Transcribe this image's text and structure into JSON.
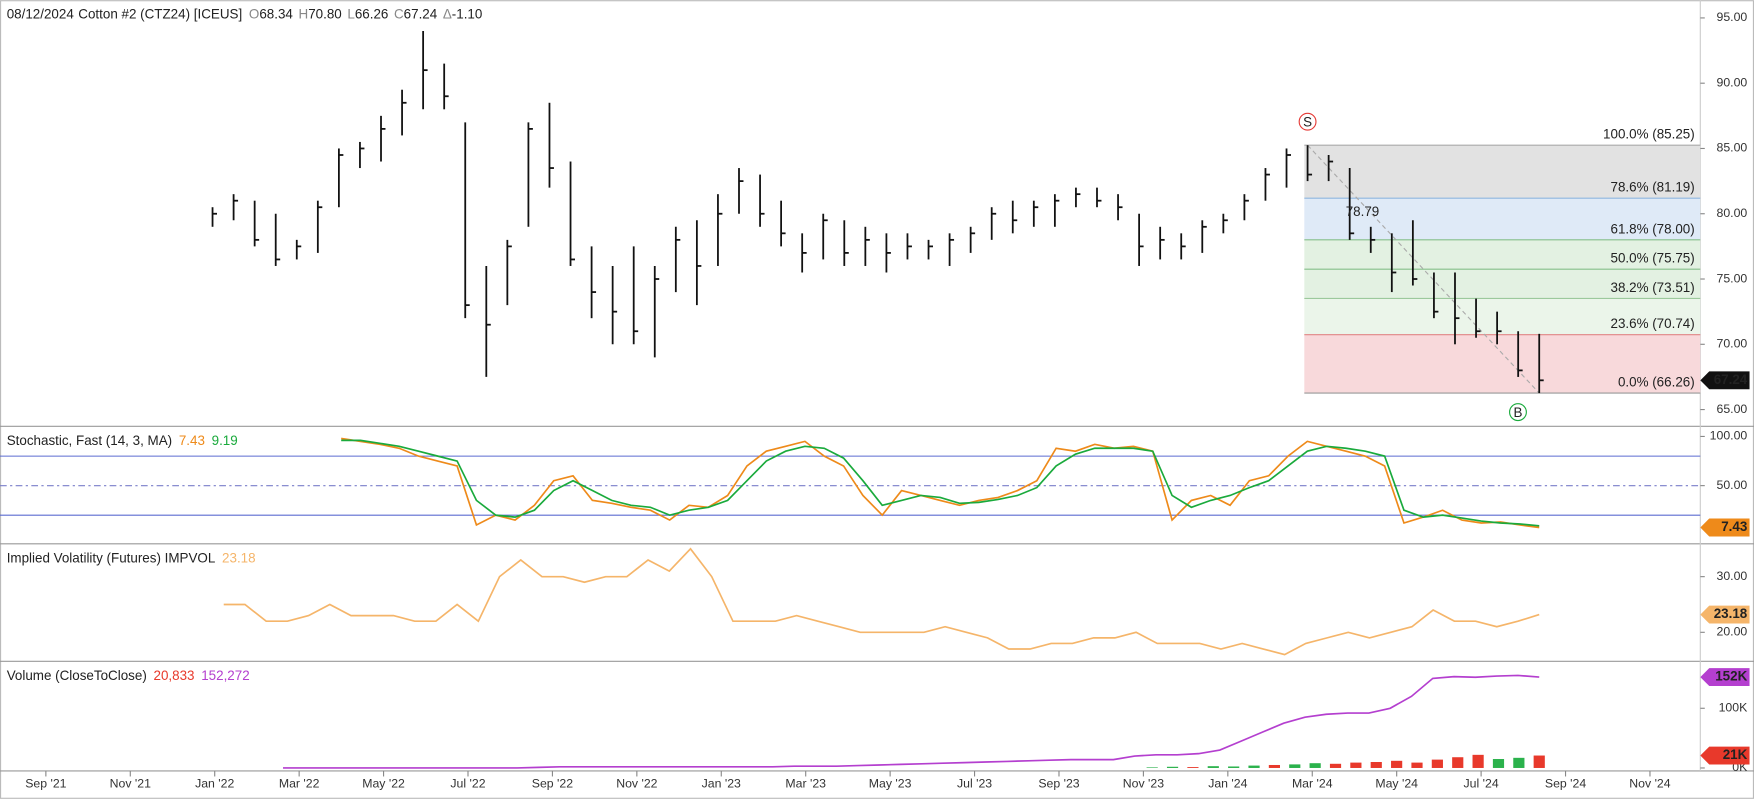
{
  "header": {
    "date": "08/12/2024",
    "symbol": "Cotton #2 (CTZ24) [ICEUS]",
    "ohlc_fields": [
      {
        "key": "O",
        "value": "68.34"
      },
      {
        "key": "H",
        "value": "70.80"
      },
      {
        "key": "L",
        "value": "66.26"
      },
      {
        "key": "C",
        "value": "67.24"
      },
      {
        "key": "Δ",
        "value": "-1.10"
      }
    ]
  },
  "x_axis": {
    "labels": [
      "Sep '21",
      "Nov '21",
      "Jan '22",
      "Mar '22",
      "May '22",
      "Jul '22",
      "Sep '22",
      "Nov '22",
      "Jan '23",
      "Mar '23",
      "May '23",
      "Jul '23",
      "Sep '23",
      "Nov '23",
      "Jan '24",
      "Mar '24",
      "May '24",
      "Jul '24",
      "Sep '24",
      "Nov '24"
    ]
  },
  "chart_data": [
    {
      "type": "ohlc",
      "color": "#111111",
      "high": [
        80.5,
        81.5,
        81,
        80,
        78,
        81,
        85,
        85.5,
        87.5,
        89.5,
        94,
        91.5,
        87,
        76,
        78,
        87,
        88.5,
        84,
        77.5,
        76,
        77.5,
        76,
        79,
        79.5,
        81.5,
        83.5,
        83,
        81,
        78.5,
        80,
        79.5,
        79,
        78.5,
        78.5,
        78,
        78.5,
        79,
        80.5,
        81,
        81,
        81.5,
        82,
        82,
        81.5,
        80,
        79,
        78.5,
        79.5,
        80,
        81.5,
        83.5,
        85,
        85.25,
        84.5,
        83.5,
        79,
        78.5,
        79.5,
        75.5,
        75.5,
        73.5,
        72.5,
        71,
        70.8
      ],
      "low": [
        79,
        79.5,
        77.5,
        76,
        76.5,
        77,
        80.5,
        83.5,
        84,
        86,
        88,
        88,
        72,
        67.5,
        73,
        79,
        82,
        76,
        72,
        70,
        70,
        69,
        74,
        73,
        76,
        80,
        79,
        77.5,
        75.5,
        76.5,
        76,
        76,
        75.5,
        76.5,
        76.5,
        76,
        77,
        78,
        78.5,
        79,
        79,
        80.5,
        80.5,
        79.5,
        76,
        76.5,
        76.5,
        77,
        78.5,
        79.5,
        81,
        82,
        82.5,
        82.5,
        78,
        77,
        74,
        74.5,
        72,
        70,
        70.5,
        70,
        67.5,
        66.26
      ],
      "close": [
        80,
        81,
        78,
        76.5,
        77.5,
        80.5,
        84.5,
        85,
        86.5,
        88.5,
        91,
        89,
        73,
        71.5,
        77.5,
        86.5,
        83.5,
        76.5,
        74,
        72.5,
        71,
        75,
        78,
        76,
        80,
        82.5,
        80,
        78.5,
        77,
        79.5,
        77,
        78,
        77,
        77.5,
        77.5,
        78,
        78.5,
        80,
        79.5,
        80.5,
        81,
        81.5,
        81,
        80.5,
        77.5,
        78,
        77.5,
        79,
        79.5,
        81,
        83,
        84.5,
        83,
        84,
        78.5,
        78,
        75.5,
        75,
        72.5,
        72,
        71,
        71,
        68,
        67.24
      ],
      "ylim": [
        63.8,
        96.19
      ],
      "yticks": [
        {
          "value": 95,
          "label": "95.00"
        },
        {
          "value": 90,
          "label": "90.00"
        },
        {
          "value": 85,
          "label": "85.00"
        },
        {
          "value": 80,
          "label": "80.00"
        },
        {
          "value": 75,
          "label": "75.00"
        },
        {
          "value": 70,
          "label": "70.00"
        },
        {
          "value": 65,
          "label": "65.00"
        }
      ],
      "fib_levels": [
        {
          "value": 85.25,
          "label": "100.0% (85.25)",
          "color": "#aaaaaa"
        },
        {
          "value": 81.19,
          "label": "78.6% (81.19)",
          "color": "#8fb6df"
        },
        {
          "value": 78.0,
          "label": "61.8% (78.00)",
          "color": "#86bf8a"
        },
        {
          "value": 75.75,
          "label": "50.0% (75.75)",
          "color": "#86bf8a"
        },
        {
          "value": 73.51,
          "label": "38.2% (73.51)",
          "color": "#9cc99c"
        },
        {
          "value": 70.74,
          "label": "23.6% (70.74)",
          "color": "#e08585"
        },
        {
          "value": 66.26,
          "label": "0.0% (66.26)",
          "color": "#999999"
        }
      ],
      "fib_band_colors": [
        "#e2e2e2",
        "#dfeaf7",
        "#e3f1e2",
        "#e3f1e2",
        "#ebf5ea",
        "#f8d9db"
      ],
      "annotation": "78.79",
      "signals": [
        "S",
        "B"
      ]
    },
    {
      "type": "line",
      "title": "Stochastic, Fast  (14, 3, MA)",
      "ylim": [
        -8,
        108
      ],
      "yticks": [
        {
          "value": 100,
          "label": "100.00"
        },
        {
          "value": 50,
          "label": "50.00"
        }
      ],
      "levels": [
        80,
        20
      ],
      "series": [
        {
          "color": "#ee8a1a",
          "values": [
            98,
            95,
            92,
            88,
            80,
            75,
            70,
            10,
            20,
            15,
            30,
            55,
            60,
            35,
            32,
            28,
            25,
            15,
            30,
            28,
            40,
            70,
            85,
            90,
            95,
            80,
            70,
            40,
            20,
            45,
            40,
            35,
            30,
            35,
            38,
            45,
            55,
            88,
            85,
            92,
            88,
            90,
            85,
            15,
            35,
            40,
            30,
            55,
            60,
            80,
            95,
            90,
            85,
            80,
            70,
            12,
            18,
            25,
            15,
            12,
            13,
            10,
            7.43
          ]
        },
        {
          "color": "#1aaa3c",
          "values": [
            96,
            96,
            93,
            90,
            85,
            80,
            75,
            35,
            20,
            18,
            25,
            45,
            55,
            45,
            35,
            30,
            28,
            20,
            25,
            28,
            35,
            55,
            75,
            85,
            90,
            88,
            78,
            55,
            30,
            35,
            40,
            38,
            32,
            33,
            36,
            40,
            48,
            70,
            82,
            88,
            88,
            88,
            85,
            40,
            28,
            35,
            40,
            48,
            55,
            70,
            85,
            90,
            88,
            85,
            80,
            25,
            18,
            20,
            17,
            14,
            12,
            11,
            9.19
          ]
        }
      ]
    },
    {
      "type": "line",
      "title": "Implied Volatility (Futures) IMPVOL",
      "ylim": [
        15,
        35.5
      ],
      "yticks": [
        {
          "value": 30,
          "label": "30.00"
        },
        {
          "value": 20,
          "label": "20.00"
        }
      ],
      "series": [
        {
          "color": "#f5b56a",
          "values": [
            25,
            25,
            22,
            22,
            23,
            25,
            23,
            23,
            23,
            22,
            22,
            25,
            22,
            30,
            33,
            30,
            30,
            29,
            30,
            30,
            33,
            31,
            35,
            30,
            22,
            22,
            22,
            23,
            22,
            21,
            20,
            20,
            20,
            20,
            21,
            20,
            19,
            17,
            17,
            18,
            18,
            19,
            19,
            20,
            18,
            18,
            18,
            17,
            18,
            17,
            16,
            18,
            19,
            20,
            19,
            20,
            21,
            24,
            22,
            22,
            21,
            22,
            23.18
          ]
        }
      ]
    },
    {
      "type": "volume",
      "title": "Volume  (CloseToClose)",
      "ylim": [
        -3000,
        175000
      ],
      "yticks": [
        {
          "value": 100000,
          "label": "100K"
        },
        {
          "value": 0,
          "label": "0K"
        }
      ],
      "bars": {
        "legend_label": "20,833",
        "badge_label": "21K",
        "badge_color": "#e8392b",
        "values": [
          1000,
          2000,
          1500,
          3000,
          2500,
          4000,
          5000,
          6000,
          8000,
          7000,
          9000,
          10000,
          12000,
          9000,
          14000,
          18000,
          22000,
          15000,
          17000,
          20833
        ],
        "colors": [
          "#2bb24c",
          "#2bb24c",
          "#e8392b",
          "#2bb24c",
          "#2bb24c",
          "#2bb24c",
          "#e8392b",
          "#2bb24c",
          "#2bb24c",
          "#e8392b",
          "#e8392b",
          "#e8392b",
          "#e8392b",
          "#e8392b",
          "#e8392b",
          "#e8392b",
          "#e8392b",
          "#2bb24c",
          "#2bb24c",
          "#e8392b"
        ]
      },
      "line": {
        "color": "#b43fcf",
        "legend_label": "152,272",
        "badge_label": "152K",
        "values": [
          0,
          0,
          0,
          0,
          0,
          0,
          0,
          0,
          0,
          0,
          0,
          0,
          1000,
          2000,
          2000,
          2000,
          2000,
          2000,
          2000,
          2000,
          2000,
          2000,
          2000,
          2000,
          3000,
          3000,
          3000,
          4000,
          5000,
          6000,
          7000,
          8000,
          9000,
          10000,
          11000,
          12000,
          13000,
          14000,
          14000,
          14000,
          20000,
          22000,
          22000,
          24000,
          30000,
          45000,
          60000,
          75000,
          85000,
          90000,
          92000,
          92000,
          100000,
          120000,
          150000,
          153000,
          152000,
          154000,
          155000,
          152272
        ]
      }
    }
  ]
}
